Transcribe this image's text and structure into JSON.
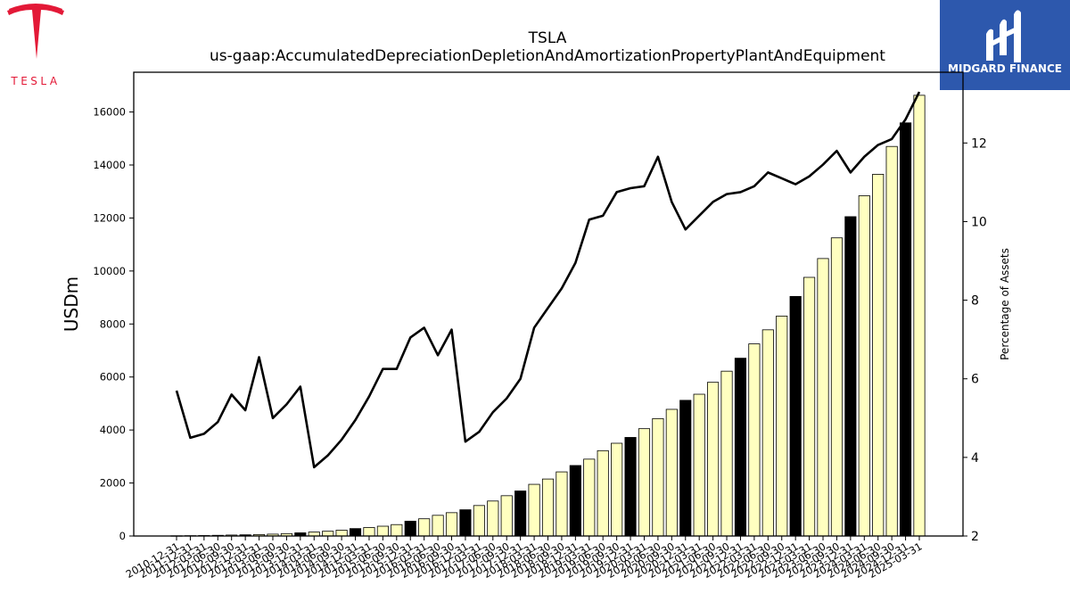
{
  "brand": {
    "left_logo_text": "TESLA",
    "right_logo_text": "MIDGARD FINANCE",
    "tesla_red": "#e31937",
    "midgard_blue": "#2d58ad"
  },
  "chart_data": {
    "type": "bar",
    "title": "TSLA",
    "subtitle": "us-gaap:AccumulatedDepreciationDepletionAndAmortizationPropertyPlantAndEquipment",
    "ylabel": "USDm",
    "ylabel_right": "Percentage of Assets",
    "ylim": [
      0,
      17500
    ],
    "ylim_right": [
      2,
      13.8
    ],
    "yticks": [
      0,
      2000,
      4000,
      6000,
      8000,
      10000,
      12000,
      14000,
      16000
    ],
    "yticks_right": [
      2,
      4,
      6,
      8,
      10,
      12
    ],
    "grid": false,
    "bar_colors": {
      "quarter": "#ffffc0",
      "year_end": "#000000"
    },
    "categories": [
      "2010-12-31",
      "2011-12-31",
      "2012-03-31",
      "2012-06-30",
      "2012-09-30",
      "2012-12-31",
      "2013-03-31",
      "2013-06-30",
      "2013-09-30",
      "2013-12-31",
      "2014-03-31",
      "2014-06-30",
      "2014-09-30",
      "2014-12-31",
      "2015-03-31",
      "2015-06-30",
      "2015-09-30",
      "2015-12-31",
      "2016-03-31",
      "2016-06-30",
      "2016-09-30",
      "2016-12-31",
      "2017-03-31",
      "2017-06-30",
      "2017-09-30",
      "2017-12-31",
      "2018-03-31",
      "2018-06-30",
      "2018-09-30",
      "2018-12-31",
      "2019-03-31",
      "2019-06-30",
      "2019-09-30",
      "2019-12-31",
      "2020-03-31",
      "2020-06-30",
      "2020-09-30",
      "2020-12-31",
      "2021-03-31",
      "2021-06-30",
      "2021-09-30",
      "2021-12-31",
      "2022-03-31",
      "2022-06-30",
      "2022-09-30",
      "2022-12-31",
      "2023-03-31",
      "2023-06-30",
      "2023-09-30",
      "2023-12-31",
      "2024-03-31",
      "2024-06-30",
      "2024-09-30",
      "2024-12-31",
      "2025-03-31"
    ],
    "series": [
      {
        "type": "bar",
        "axis": "left",
        "values": [
          8,
          12,
          18,
          26,
          36,
          45,
          55,
          70,
          90,
          120,
          150,
          180,
          220,
          280,
          320,
          370,
          430,
          560,
          650,
          780,
          880,
          990,
          1150,
          1320,
          1520,
          1700,
          1950,
          2150,
          2420,
          2660,
          2900,
          3220,
          3500,
          3720,
          4050,
          4430,
          4780,
          5120,
          5350,
          5800,
          6220,
          6710,
          7250,
          7780,
          8300,
          9040,
          9760,
          10470,
          11250,
          12050,
          12840,
          13650,
          14700,
          15590,
          16630
        ],
        "year_end": [
          true,
          true,
          false,
          false,
          false,
          true,
          false,
          false,
          false,
          true,
          false,
          false,
          false,
          true,
          false,
          false,
          false,
          true,
          false,
          false,
          false,
          true,
          false,
          false,
          false,
          true,
          false,
          false,
          false,
          true,
          false,
          false,
          false,
          true,
          false,
          false,
          false,
          true,
          false,
          false,
          false,
          true,
          false,
          false,
          false,
          true,
          false,
          false,
          false,
          true,
          false,
          false,
          false,
          true,
          false
        ]
      },
      {
        "type": "line",
        "axis": "right",
        "values": [
          5.7,
          4.5,
          4.6,
          4.9,
          5.6,
          5.2,
          6.55,
          5.0,
          5.35,
          5.8,
          3.75,
          4.05,
          4.45,
          4.95,
          5.55,
          6.25,
          6.25,
          7.05,
          7.3,
          6.6,
          7.25,
          4.4,
          4.65,
          5.15,
          5.5,
          6.0,
          7.3,
          7.8,
          8.3,
          8.95,
          10.05,
          10.15,
          10.75,
          10.85,
          10.9,
          11.65,
          10.5,
          9.8,
          10.15,
          10.5,
          10.7,
          10.75,
          10.9,
          11.25,
          11.1,
          10.95,
          11.15,
          11.45,
          11.8,
          11.25,
          11.65,
          11.95,
          12.1,
          12.6,
          13.3
        ]
      }
    ]
  }
}
